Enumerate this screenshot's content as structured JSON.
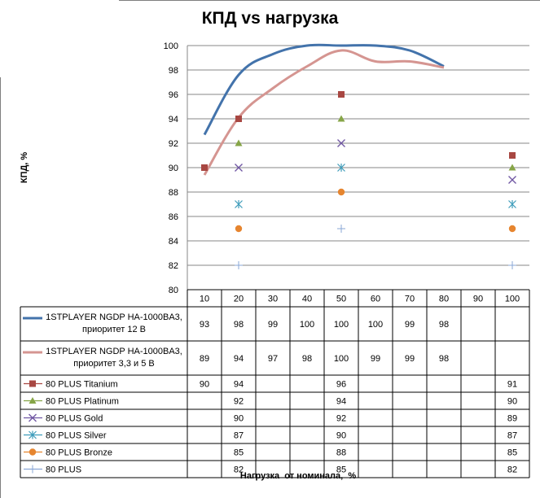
{
  "chart_data": {
    "type": "line",
    "title": "КПД vs нагрузка",
    "xlabel": "Нагрузка  от номинала,  %",
    "ylabel": "КПД, %",
    "ylim": [
      80,
      100
    ],
    "yticks": [
      "80",
      "82",
      "84",
      "86",
      "88",
      "90",
      "92",
      "94",
      "96",
      "98",
      "100"
    ],
    "categories": [
      "10",
      "20",
      "30",
      "40",
      "50",
      "60",
      "70",
      "80",
      "90",
      "100"
    ],
    "grid": true,
    "legend": "data-table",
    "series": [
      {
        "name": "1STPLAYER  NGDP HA-1000BA3, приоритет 12 В",
        "label_lines": [
          "1STPLAYER  NGDP HA-1000BA3,",
          "приоритет 12 В"
        ],
        "style": "line",
        "color": "#4373ab",
        "values": [
          93,
          98,
          99,
          100,
          100,
          100,
          99,
          98,
          null,
          null
        ],
        "curve": [
          92.7,
          97.6,
          99.3,
          100,
          100,
          100,
          99.6,
          98.3,
          null,
          null
        ],
        "cells": [
          "93",
          "98",
          "99",
          "100",
          "100",
          "100",
          "99",
          "98",
          "",
          ""
        ]
      },
      {
        "name": "1STPLAYER  NGDP HA-1000BA3, приоритет 3,3 и 5 В",
        "label_lines": [
          "1STPLAYER  NGDP HA-1000BA3,",
          "приоритет 3,3 и 5 В"
        ],
        "style": "line",
        "color": "#d59591",
        "values": [
          89,
          94,
          97,
          98,
          100,
          99,
          99,
          98,
          null,
          null
        ],
        "curve": [
          89.4,
          94.1,
          96.5,
          98.3,
          99.6,
          98.7,
          98.7,
          98.2,
          null,
          null
        ],
        "cells": [
          "89",
          "94",
          "97",
          "98",
          "100",
          "99",
          "99",
          "98",
          "",
          ""
        ]
      },
      {
        "name": "80 PLUS Titanium",
        "label_lines": [
          "80 PLUS Titanium"
        ],
        "style": "square",
        "color": "#a84742",
        "values": [
          90,
          94,
          null,
          null,
          96,
          null,
          null,
          null,
          null,
          91
        ],
        "cells": [
          "90",
          "94",
          "",
          "",
          "96",
          "",
          "",
          "",
          "",
          "91"
        ]
      },
      {
        "name": "80 PLUS Platinum",
        "label_lines": [
          "80 PLUS Platinum"
        ],
        "style": "triangle",
        "color": "#86a547",
        "values": [
          null,
          92,
          null,
          null,
          94,
          null,
          null,
          null,
          null,
          90
        ],
        "cells": [
          "",
          "92",
          "",
          "",
          "94",
          "",
          "",
          "",
          "",
          "90"
        ]
      },
      {
        "name": "80 PLUS Gold",
        "label_lines": [
          "80 PLUS Gold"
        ],
        "style": "x",
        "color": "#7057a3",
        "values": [
          null,
          90,
          null,
          null,
          92,
          null,
          null,
          null,
          null,
          89
        ],
        "cells": [
          "",
          "90",
          "",
          "",
          "92",
          "",
          "",
          "",
          "",
          "89"
        ]
      },
      {
        "name": "80 PLUS Silver",
        "label_lines": [
          "80 PLUS Silver"
        ],
        "style": "star",
        "color": "#3f9dbb",
        "values": [
          null,
          87,
          null,
          null,
          90,
          null,
          null,
          null,
          null,
          87
        ],
        "cells": [
          "",
          "87",
          "",
          "",
          "90",
          "",
          "",
          "",
          "",
          "87"
        ]
      },
      {
        "name": "80 PLUS Bronze",
        "label_lines": [
          "80 PLUS Bronze"
        ],
        "style": "circle",
        "color": "#e6852f",
        "values": [
          null,
          85,
          null,
          null,
          88,
          null,
          null,
          null,
          null,
          85
        ],
        "cells": [
          "",
          "85",
          "",
          "",
          "88",
          "",
          "",
          "",
          "",
          "85"
        ]
      },
      {
        "name": "80 PLUS",
        "label_lines": [
          "80 PLUS"
        ],
        "style": "plus",
        "color": "#8aa7d6",
        "values": [
          null,
          82,
          null,
          null,
          85,
          null,
          null,
          null,
          null,
          82
        ],
        "cells": [
          "",
          "82",
          "",
          "",
          "85",
          "",
          "",
          "",
          "",
          "82"
        ]
      }
    ]
  }
}
